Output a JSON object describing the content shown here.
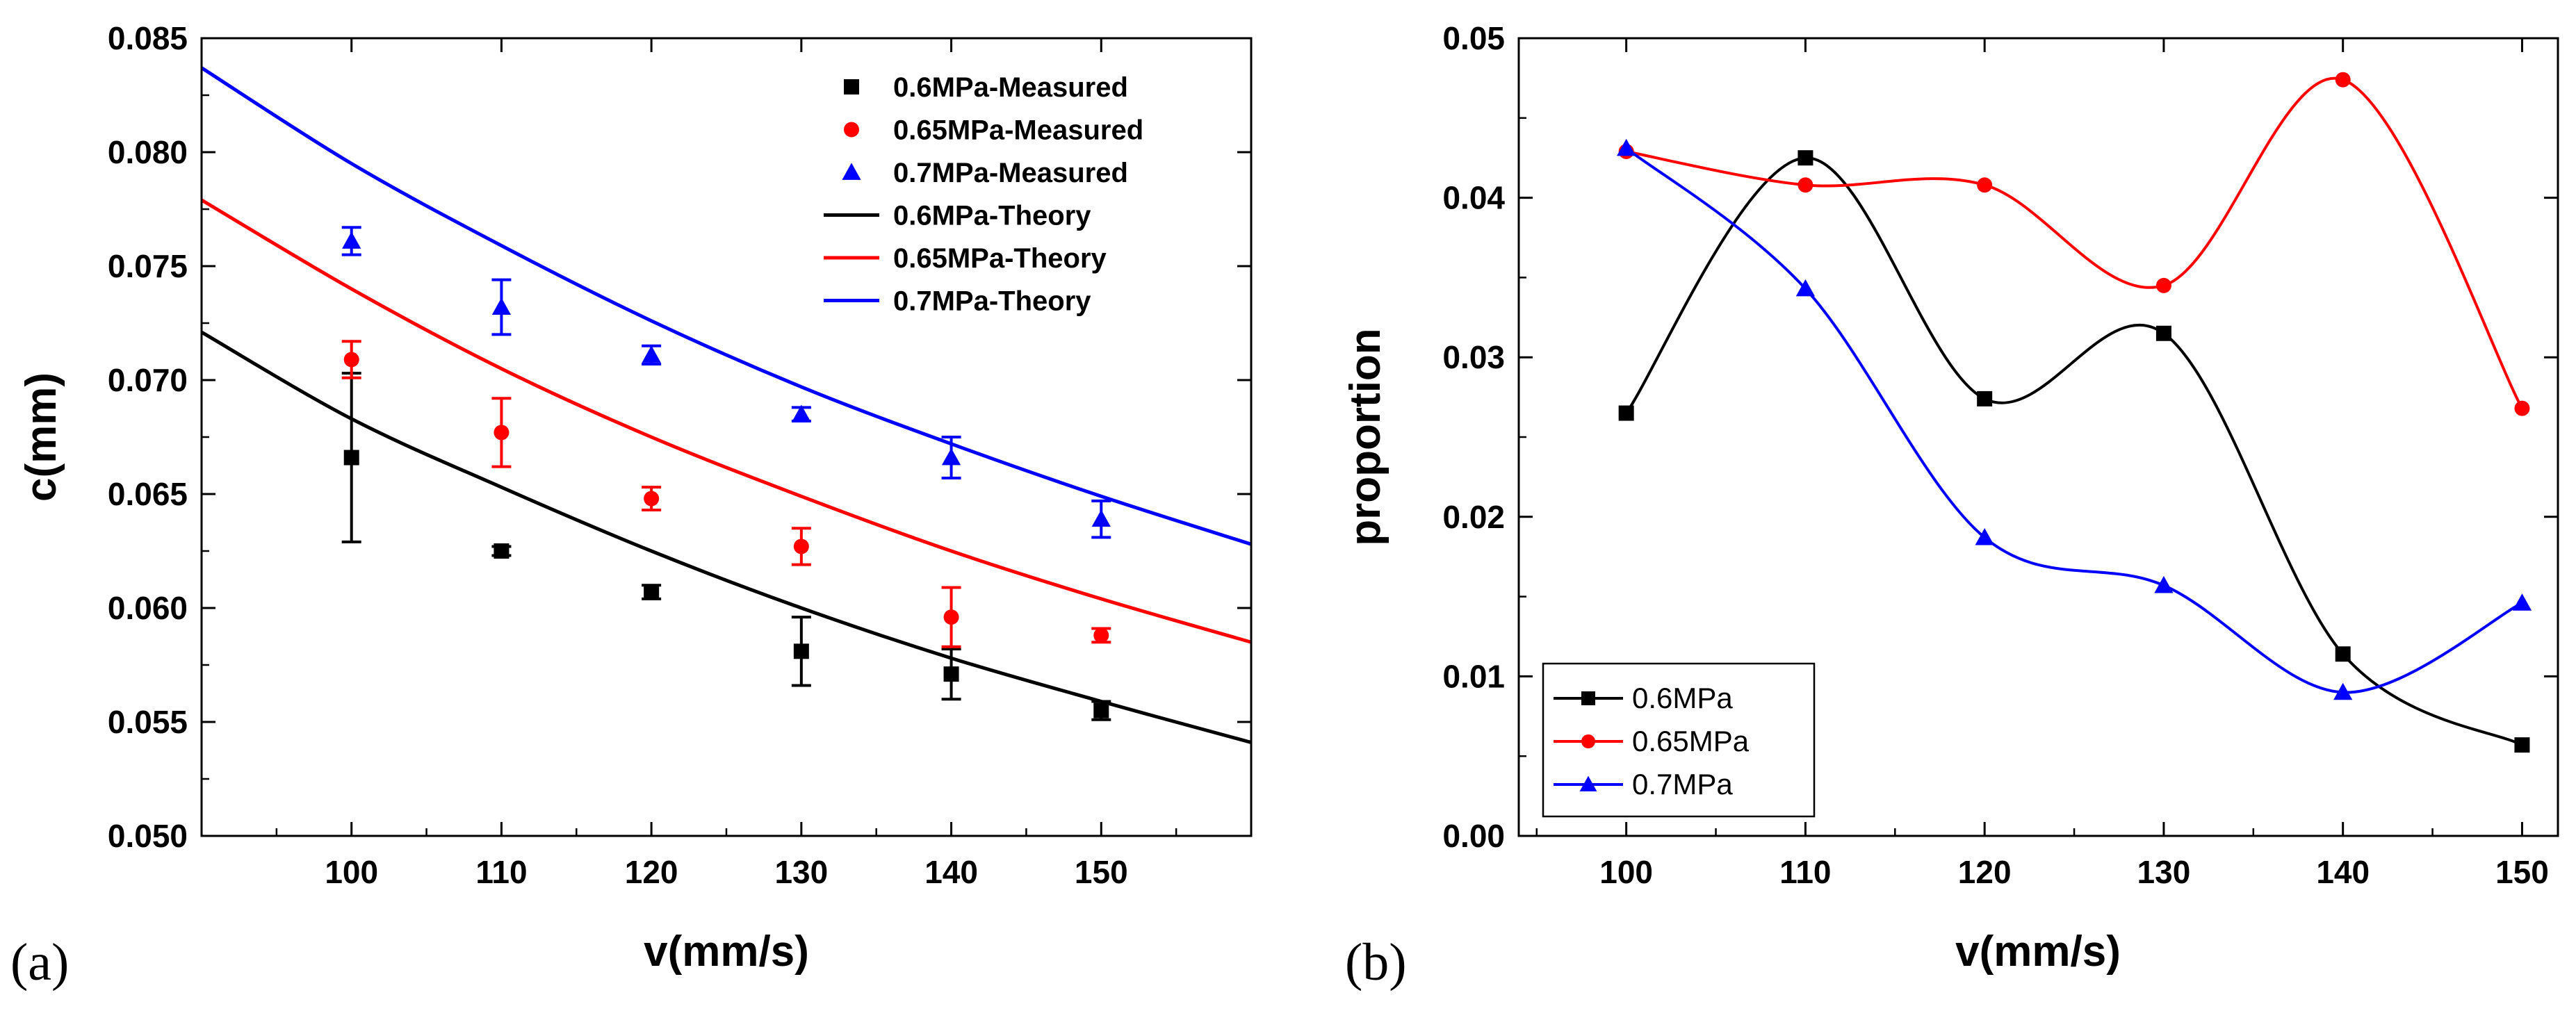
{
  "chart_data": [
    {
      "panel_label": "(a)",
      "type": "scatter",
      "xlabel": "v(mm/s)",
      "ylabel": "c(mm)",
      "xlim": [
        90,
        160
      ],
      "ylim": [
        0.05,
        0.085
      ],
      "xticks": [
        100,
        110,
        120,
        130,
        140,
        150
      ],
      "xtick_labels": [
        "100",
        "110",
        "120",
        "130",
        "140",
        "150"
      ],
      "yticks": [
        0.05,
        0.055,
        0.06,
        0.065,
        0.07,
        0.075,
        0.08,
        0.085
      ],
      "ytick_labels": [
        "0.050",
        "0.055",
        "0.060",
        "0.065",
        "0.070",
        "0.075",
        "0.080",
        "0.085"
      ],
      "legend_position": "top-right",
      "series": [
        {
          "name": "0.6MPa-Measured",
          "kind": "measured",
          "marker": "square",
          "color": "#000000",
          "x": [
            100,
            110,
            120,
            130,
            140,
            150
          ],
          "y": [
            0.0666,
            0.0625,
            0.0607,
            0.0581,
            0.0571,
            0.0555
          ],
          "err": [
            0.0037,
            0.0002,
            0.0003,
            0.0015,
            0.0011,
            0.0004
          ]
        },
        {
          "name": "0.65MPa-Measured",
          "kind": "measured",
          "marker": "circle",
          "color": "#ff0000",
          "x": [
            100,
            110,
            120,
            130,
            140,
            150
          ],
          "y": [
            0.0709,
            0.0677,
            0.0648,
            0.0627,
            0.0596,
            0.0588
          ],
          "err": [
            0.0008,
            0.0015,
            0.0005,
            0.0008,
            0.0013,
            0.0003
          ]
        },
        {
          "name": "0.7MPa-Measured",
          "kind": "measured",
          "marker": "triangle",
          "color": "#0000ff",
          "x": [
            100,
            110,
            120,
            130,
            140,
            150
          ],
          "y": [
            0.0761,
            0.0732,
            0.0711,
            0.0685,
            0.0666,
            0.0639
          ],
          "err": [
            0.0006,
            0.0012,
            0.0004,
            0.0003,
            0.0009,
            0.0008
          ]
        },
        {
          "name": "0.6MPa-Theory",
          "kind": "theory",
          "color": "#000000",
          "x": [
            90,
            100,
            110,
            120,
            130,
            140,
            150,
            160
          ],
          "y": [
            0.0721,
            0.0683,
            0.0653,
            0.0625,
            0.06,
            0.0578,
            0.0559,
            0.0541
          ]
        },
        {
          "name": "0.65MPa-Theory",
          "kind": "theory",
          "color": "#ff0000",
          "x": [
            90,
            100,
            110,
            120,
            130,
            140,
            150,
            160
          ],
          "y": [
            0.0779,
            0.074,
            0.0705,
            0.0675,
            0.0649,
            0.0625,
            0.0604,
            0.0585
          ],
          "err": null
        },
        {
          "name": "0.7MPa-Theory",
          "kind": "theory",
          "color": "#0000ff",
          "x": [
            90,
            100,
            110,
            120,
            130,
            140,
            150,
            160
          ],
          "y": [
            0.0837,
            0.0795,
            0.0759,
            0.0726,
            0.0697,
            0.0672,
            0.0649,
            0.0628
          ]
        }
      ]
    },
    {
      "panel_label": "(b)",
      "type": "line",
      "xlabel": "v(mm/s)",
      "ylabel": "proportion",
      "xlim": [
        94,
        152
      ],
      "ylim": [
        0,
        0.05
      ],
      "xticks": [
        100,
        110,
        120,
        130,
        140,
        150
      ],
      "xtick_labels": [
        "100",
        "110",
        "120",
        "130",
        "140",
        "150"
      ],
      "yticks": [
        0,
        0.01,
        0.02,
        0.03,
        0.04,
        0.05
      ],
      "ytick_labels": [
        "0.00",
        "0.01",
        "0.02",
        "0.03",
        "0.04",
        "0.05"
      ],
      "legend_position": "bottom-left",
      "series": [
        {
          "name": "0.6MPa",
          "marker": "square",
          "color": "#000000",
          "x": [
            100,
            110,
            120,
            130,
            140,
            150
          ],
          "y": [
            0.0265,
            0.0425,
            0.0274,
            0.0315,
            0.0114,
            0.0057
          ]
        },
        {
          "name": "0.65MPa",
          "marker": "circle",
          "color": "#ff0000",
          "x": [
            100,
            110,
            120,
            130,
            140,
            150
          ],
          "y": [
            0.0429,
            0.0408,
            0.0408,
            0.0345,
            0.0474,
            0.0268
          ]
        },
        {
          "name": "0.7MPa",
          "marker": "triangle",
          "color": "#0000ff",
          "x": [
            100,
            110,
            120,
            130,
            140,
            150
          ],
          "y": [
            0.0431,
            0.0343,
            0.0187,
            0.0157,
            0.009,
            0.0146
          ]
        }
      ]
    }
  ]
}
